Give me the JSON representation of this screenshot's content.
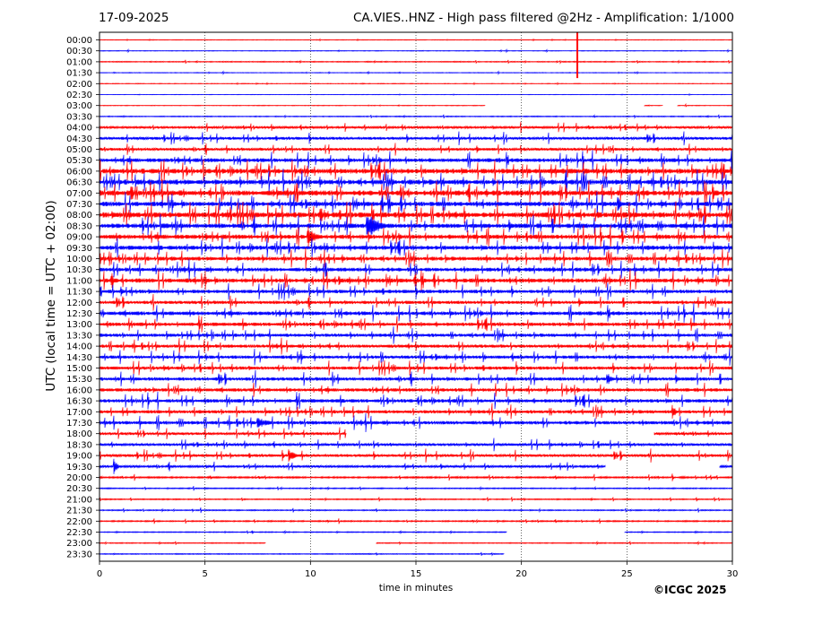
{
  "header": {
    "date": "17-09-2025",
    "title": "CA.VIES..HNZ - High pass filtered @2Hz - Amplification: 1/1000"
  },
  "footer": {
    "copyright": "©ICGC 2025"
  },
  "colors": {
    "trace_a": "#ff0000",
    "trace_b": "#0000ff",
    "axes": "#000000",
    "grid": "#000000"
  },
  "chart_data": {
    "type": "line",
    "title": "CA.VIES..HNZ - High pass filtered @2Hz - Amplification: 1/1000",
    "xlabel": "time in minutes",
    "ylabel": "UTC (local time = UTC + 02:00)",
    "xlim": [
      0,
      30
    ],
    "x_ticks": [
      "0",
      "5",
      "10",
      "15",
      "20",
      "25",
      "30"
    ],
    "vertical_grid_minutes": [
      5,
      10,
      15,
      20,
      25
    ],
    "grid": "dotted vertical",
    "row_labels": [
      "00:00",
      "00:30",
      "01:00",
      "01:30",
      "02:00",
      "02:30",
      "03:00",
      "03:30",
      "04:00",
      "04:30",
      "05:00",
      "05:30",
      "06:00",
      "06:30",
      "07:00",
      "07:30",
      "08:00",
      "08:30",
      "09:00",
      "09:30",
      "10:00",
      "10:30",
      "11:00",
      "11:30",
      "12:00",
      "12:30",
      "13:00",
      "13:30",
      "14:00",
      "14:30",
      "15:00",
      "15:30",
      "16:00",
      "16:30",
      "17:00",
      "17:30",
      "18:00",
      "18:30",
      "19:00",
      "19:30",
      "20:00",
      "20:30",
      "21:00",
      "21:30",
      "22:00",
      "22:30",
      "23:00",
      "23:30"
    ],
    "noise_level": [
      0.3,
      0.3,
      0.5,
      0.3,
      0.3,
      0.2,
      0.3,
      0.5,
      1.2,
      1.5,
      1.5,
      2.2,
      2.8,
      2.8,
      3,
      2.6,
      3,
      2.6,
      2.5,
      2.4,
      2.2,
      2.2,
      2.4,
      2,
      1.8,
      2.2,
      2,
      1.8,
      1.8,
      1.8,
      1.8,
      1.9,
      1.9,
      2,
      1.8,
      2,
      1.4,
      1.4,
      1.5,
      1.2,
      0.9,
      0.6,
      0.6,
      0.6,
      0.7,
      0.5,
      0.5,
      0.5
    ],
    "gaps_minutes": [
      {
        "row": 6,
        "from": 18.3,
        "to": 25.8
      },
      {
        "row": 6,
        "from": 26.7,
        "to": 27.4
      },
      {
        "row": 36,
        "from": 11.7,
        "to": 26.3
      },
      {
        "row": 39,
        "from": 24.0,
        "to": 29.4
      },
      {
        "row": 45,
        "from": 19.3,
        "to": 24.9
      },
      {
        "row": 46,
        "from": 7.9,
        "to": 13.1
      },
      {
        "row": 47,
        "from": 19.2,
        "to": 30
      }
    ],
    "events": [
      {
        "row": 18,
        "minute": 9.9,
        "amplitude": 12,
        "duration": 0.7
      },
      {
        "row": 17,
        "minute": 12.7,
        "amplitude": 16,
        "duration": 1.1
      },
      {
        "row": 3,
        "minute": 22.65,
        "amplitude": 0,
        "duration": 0,
        "spike": true
      },
      {
        "row": 15,
        "minute": 24.6,
        "amplitude": 8,
        "duration": 0.3
      },
      {
        "row": 31,
        "minute": 24.1,
        "amplitude": 7,
        "duration": 0.4
      },
      {
        "row": 35,
        "minute": 7.5,
        "amplitude": 7,
        "duration": 1.0
      },
      {
        "row": 38,
        "minute": 9.0,
        "amplitude": 8,
        "duration": 0.5
      },
      {
        "row": 39,
        "minute": 0.7,
        "amplitude": 9,
        "duration": 0.3
      },
      {
        "row": 34,
        "minute": 27.2,
        "amplitude": 8,
        "duration": 0.3
      }
    ]
  }
}
